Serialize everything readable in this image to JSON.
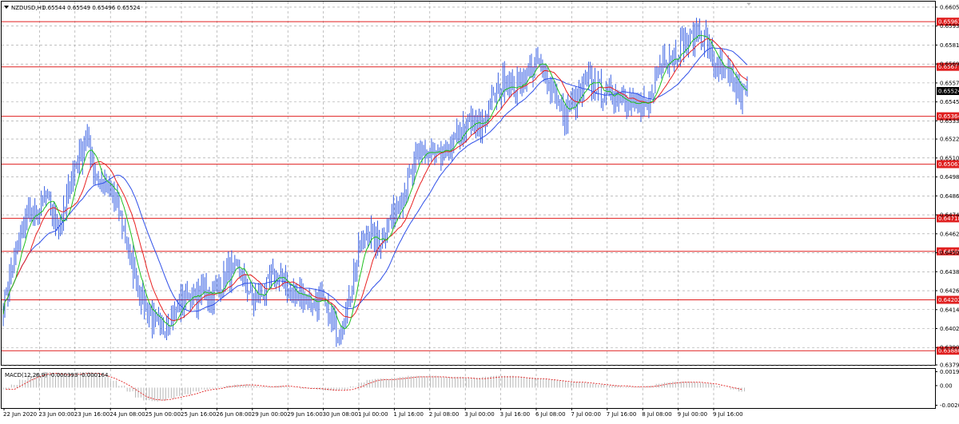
{
  "chart_data": [
    {
      "type": "candlestick",
      "symbol_header": "NZDUSD,H1",
      "ohlc_header": "0.65544 0.65549 0.65496 0.65524",
      "y_ticks": [
        "0.66055",
        "0.65935",
        "0.65815",
        "0.65695",
        "0.65575",
        "0.65455",
        "0.65335",
        "0.65220",
        "0.65100",
        "0.64980",
        "0.64860",
        "0.64740",
        "0.64620",
        "0.64500",
        "0.64380",
        "0.64260",
        "0.64140",
        "0.64020",
        "0.63900",
        "0.63790"
      ],
      "ylim": [
        0.6379,
        0.6609
      ],
      "x_ticks": [
        "22 Jun 2020",
        "23 Jun 00:00",
        "23 Jun 16:00",
        "24 Jun 08:00",
        "25 Jun 00:00",
        "25 Jun 16:00",
        "26 Jun 08:00",
        "29 Jun 00:00",
        "29 Jun 16:00",
        "30 Jun 08:00",
        "1 Jul 00:00",
        "1 Jul 16:00",
        "2 Jul 08:00",
        "3 Jul 00:00",
        "3 Jul 16:00",
        "6 Jul 08:00",
        "7 Jul 00:00",
        "7 Jul 16:00",
        "8 Jul 08:00",
        "9 Jul 00:00",
        "9 Jul 16:00"
      ],
      "levels": [
        "0.65963",
        "0.65677",
        "0.65364",
        "0.65061",
        "0.64718",
        "0.64509",
        "0.64202",
        "0.63880"
      ],
      "current_price": "0.65524",
      "close_trace": [
        [
          0,
          0.6417
        ],
        [
          1,
          0.644
        ],
        [
          2,
          0.6458
        ],
        [
          3,
          0.6478
        ],
        [
          4,
          0.647
        ],
        [
          5,
          0.6488
        ],
        [
          6,
          0.6472
        ],
        [
          7,
          0.6466
        ],
        [
          8,
          0.6495
        ],
        [
          9,
          0.651
        ],
        [
          10,
          0.6522
        ],
        [
          11,
          0.65
        ],
        [
          12,
          0.6493
        ],
        [
          13,
          0.6488
        ],
        [
          14,
          0.6475
        ],
        [
          15,
          0.645
        ],
        [
          16,
          0.643
        ],
        [
          17,
          0.6415
        ],
        [
          18,
          0.6408
        ],
        [
          19,
          0.64
        ],
        [
          20,
          0.641
        ],
        [
          21,
          0.6415
        ],
        [
          22,
          0.6425
        ],
        [
          23,
          0.642
        ],
        [
          24,
          0.6428
        ],
        [
          25,
          0.6422
        ],
        [
          26,
          0.643
        ],
        [
          27,
          0.6438
        ],
        [
          28,
          0.644
        ],
        [
          29,
          0.643
        ],
        [
          30,
          0.642
        ],
        [
          31,
          0.6425
        ],
        [
          32,
          0.6432
        ],
        [
          33,
          0.6435
        ],
        [
          34,
          0.6428
        ],
        [
          35,
          0.6422
        ],
        [
          36,
          0.6425
        ],
        [
          37,
          0.6418
        ],
        [
          38,
          0.642
        ],
        [
          39,
          0.641
        ],
        [
          40,
          0.64
        ],
        [
          41,
          0.641
        ],
        [
          42,
          0.644
        ],
        [
          43,
          0.6458
        ],
        [
          44,
          0.6462
        ],
        [
          45,
          0.6455
        ],
        [
          46,
          0.6468
        ],
        [
          47,
          0.6478
        ],
        [
          48,
          0.649
        ],
        [
          49,
          0.6502
        ],
        [
          50,
          0.6515
        ],
        [
          51,
          0.6512
        ],
        [
          52,
          0.651
        ],
        [
          53,
          0.6514
        ],
        [
          54,
          0.652
        ],
        [
          55,
          0.6528
        ],
        [
          56,
          0.6532
        ],
        [
          57,
          0.6528
        ],
        [
          58,
          0.6542
        ],
        [
          59,
          0.655
        ],
        [
          60,
          0.656
        ],
        [
          61,
          0.6552
        ],
        [
          62,
          0.656
        ],
        [
          63,
          0.6565
        ],
        [
          64,
          0.6572
        ],
        [
          65,
          0.656
        ],
        [
          66,
          0.6552
        ],
        [
          67,
          0.6535
        ],
        [
          68,
          0.6545
        ],
        [
          69,
          0.655
        ],
        [
          70,
          0.6558
        ],
        [
          71,
          0.6556
        ],
        [
          72,
          0.6548
        ],
        [
          73,
          0.6552
        ],
        [
          74,
          0.655
        ],
        [
          75,
          0.6545
        ],
        [
          76,
          0.6543
        ],
        [
          77,
          0.654
        ],
        [
          78,
          0.656
        ],
        [
          79,
          0.6575
        ],
        [
          80,
          0.6575
        ],
        [
          81,
          0.658
        ],
        [
          82,
          0.6585
        ],
        [
          83,
          0.659
        ],
        [
          84,
          0.6585
        ],
        [
          85,
          0.657
        ],
        [
          86,
          0.6565
        ],
        [
          87,
          0.656
        ],
        [
          88,
          0.655
        ],
        [
          89,
          0.6552
        ]
      ],
      "legend": [
        {
          "name": "",
          "color": "#3050e8"
        },
        {
          "name": "",
          "color": "#e82020"
        },
        {
          "name": "",
          "color": "#20c020"
        }
      ]
    },
    {
      "type": "histogram",
      "header": "MACD(12,26,9) -0.000393 -0.000164",
      "y_ticks": [
        "0.001917",
        "0.00",
        "-0.00209"
      ],
      "ylim": [
        -0.00209,
        0.001917
      ],
      "histogram": [
        -0.0002,
        0.0003,
        0.0008,
        0.0012,
        0.0015,
        0.0016,
        0.0015,
        0.0014,
        0.0015,
        0.0016,
        0.0016,
        0.0014,
        0.0011,
        0.0007,
        0.0002,
        -0.0004,
        -0.001,
        -0.0013,
        -0.0014,
        -0.0013,
        -0.0011,
        -0.0009,
        -0.0007,
        -0.0004,
        -0.0002,
        -0.0001,
        0.0001,
        0.0002,
        0.0003,
        0.0003,
        0.0002,
        0.0001,
        0.0001,
        0.0002,
        0.0001,
        0.0,
        -0.0001,
        -0.0001,
        -0.0002,
        -0.0003,
        -0.0003,
        -0.0002,
        0.0001,
        0.0005,
        0.0008,
        0.0009,
        0.0009,
        0.001,
        0.0011,
        0.0012,
        0.0012,
        0.0012,
        0.0012,
        0.0011,
        0.0011,
        0.0011,
        0.001,
        0.001,
        0.0011,
        0.0012,
        0.0012,
        0.0012,
        0.0011,
        0.001,
        0.001,
        0.0009,
        0.0008,
        0.0007,
        0.0006,
        0.0006,
        0.0005,
        0.0004,
        0.0003,
        0.0002,
        0.0002,
        0.0001,
        0.0001,
        0.0001,
        0.0002,
        0.0004,
        0.0005,
        0.0006,
        0.0006,
        0.0006,
        0.0005,
        0.0004,
        0.0002,
        0.0,
        -0.0002,
        -0.0004
      ]
    }
  ]
}
